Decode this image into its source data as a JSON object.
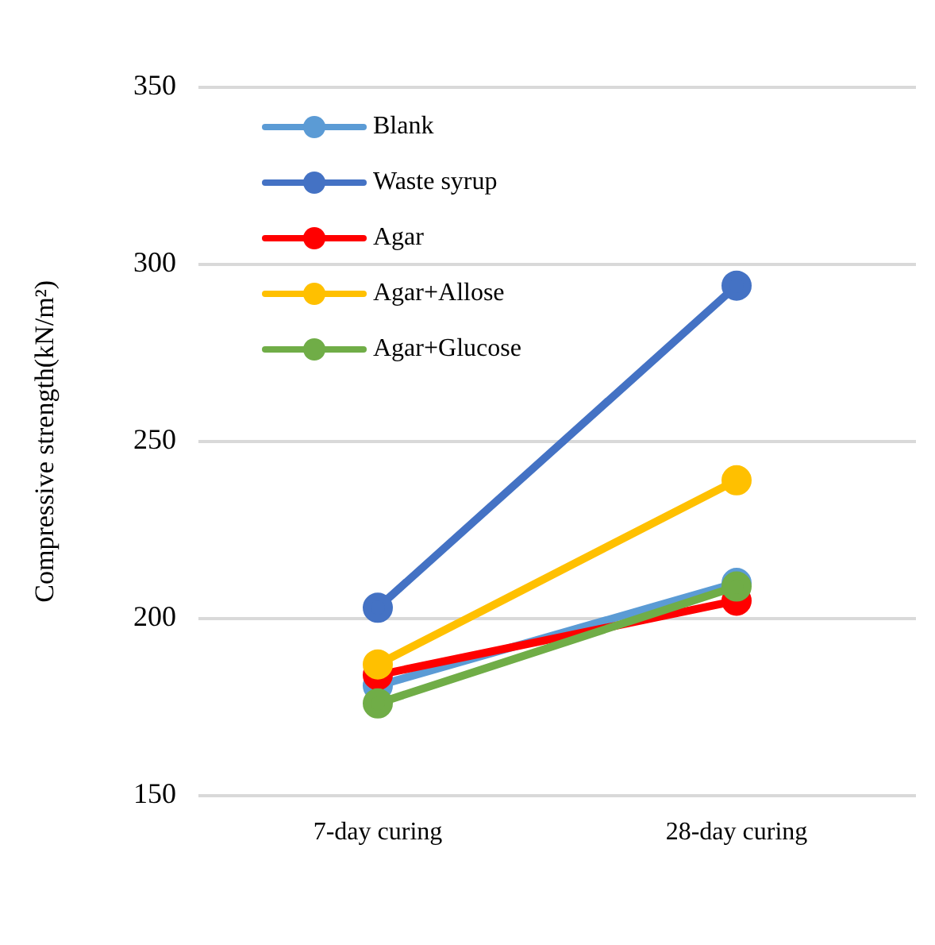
{
  "chart_data": {
    "type": "line",
    "ylabel": "Compressive strength(kN/m²)",
    "categories": [
      "7-day curing",
      "28-day curing"
    ],
    "series": [
      {
        "name": "Blank",
        "color": "#5b9bd5",
        "values": [
          181,
          210
        ]
      },
      {
        "name": "Waste syrup",
        "color": "#4472c4",
        "values": [
          203,
          294
        ]
      },
      {
        "name": "Agar",
        "color": "#ff0000",
        "values": [
          184,
          205
        ]
      },
      {
        "name": "Agar+Allose",
        "color": "#ffc000",
        "values": [
          187,
          239
        ]
      },
      {
        "name": "Agar+Glucose",
        "color": "#70ad47",
        "values": [
          176,
          209
        ]
      }
    ],
    "ylim": [
      150,
      350
    ],
    "yticks": [
      150,
      200,
      250,
      300,
      350
    ],
    "grid": "y",
    "legend": "top left",
    "marker": "circle",
    "line_style": "solid"
  }
}
